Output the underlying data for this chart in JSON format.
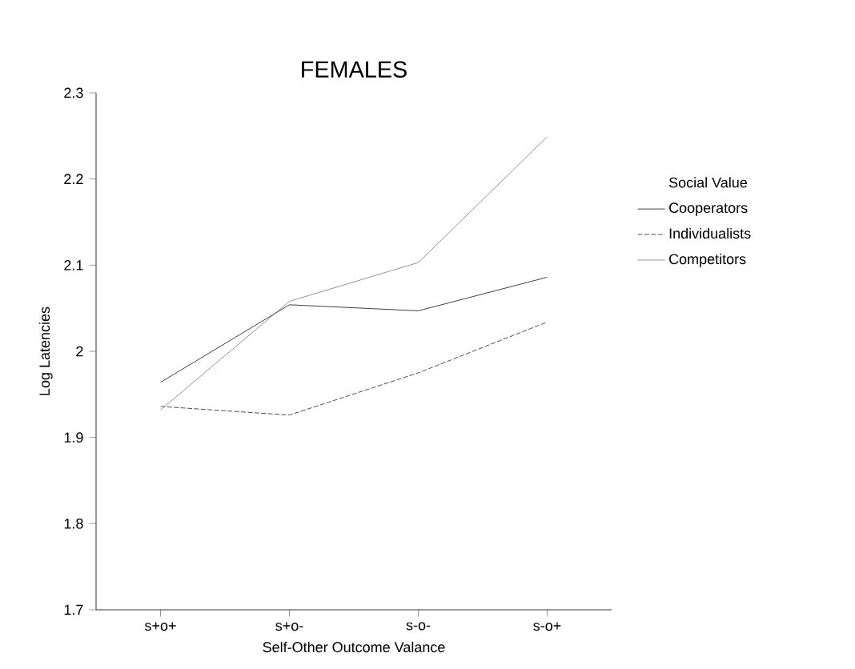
{
  "chart_data": {
    "type": "line",
    "title": "FEMALES",
    "xlabel": "Self-Other Outcome Valance",
    "ylabel": "Log Latencies",
    "legend_title": "Social Value",
    "legend": "right",
    "categories": [
      "s+o+",
      "s+o-",
      "s-o-",
      "s-o+"
    ],
    "series": [
      {
        "name": "Cooperators",
        "color": "#111111",
        "line_style": "solid",
        "values": [
          1.964,
          2.054,
          2.047,
          2.086
        ]
      },
      {
        "name": "Individualists",
        "color": "#222222",
        "line_style": "dashed",
        "values": [
          1.936,
          1.926,
          1.975,
          2.034
        ]
      },
      {
        "name": "Competitors",
        "color": "#777777",
        "line_style": "solid",
        "values": [
          1.932,
          2.058,
          2.103,
          2.249
        ]
      }
    ],
    "ylim": [
      1.7,
      2.3
    ],
    "yticks": [
      1.7,
      1.8,
      1.9,
      2,
      2.1,
      2.2,
      2.3
    ],
    "grid": false,
    "marker": "none"
  }
}
